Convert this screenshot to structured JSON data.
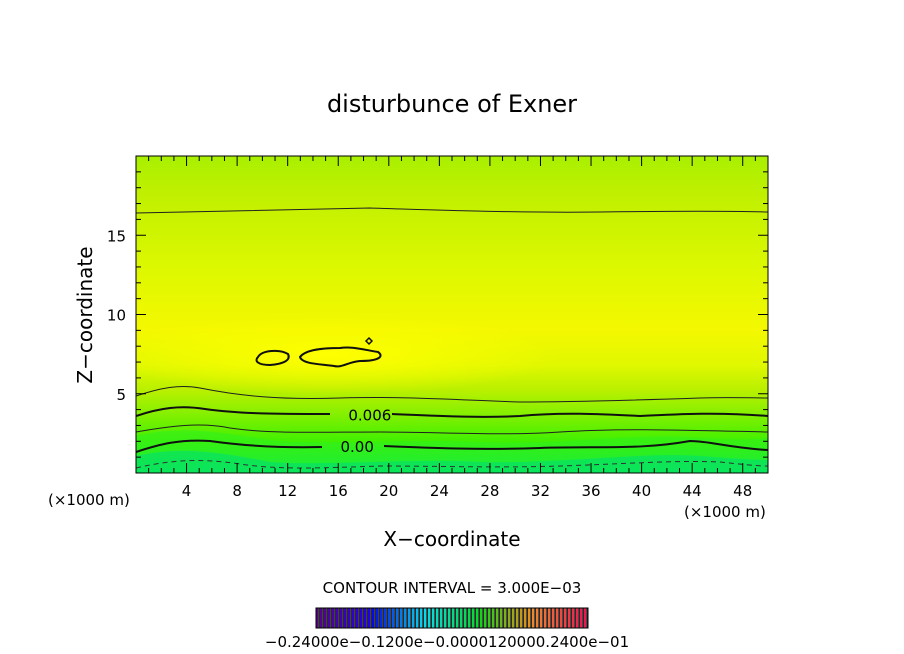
{
  "chart_data": {
    "type": "heatmap",
    "title": "disturbunce of Exner",
    "xlabel": "X−coordinate",
    "ylabel": "Z−coordinate",
    "x_unit_left": "(×1000 m)",
    "x_unit_right": "(×1000 m)",
    "xlim": [
      0,
      50
    ],
    "ylim": [
      0,
      20
    ],
    "x_ticks": [
      4,
      8,
      12,
      16,
      20,
      24,
      28,
      32,
      36,
      40,
      44,
      48
    ],
    "y_ticks": [
      5,
      10,
      15
    ],
    "x_tick_labels": [
      "4",
      "8",
      "12",
      "16",
      "20",
      "24",
      "28",
      "32",
      "36",
      "40",
      "44",
      "48"
    ],
    "y_tick_labels": [
      "5",
      "10",
      "15"
    ],
    "contour_labels": [
      {
        "text": "0.006",
        "x": 18.5,
        "z": 3.7
      },
      {
        "text": "0.00",
        "x": 17.5,
        "z": 1.7
      }
    ],
    "contour_interval_text": "CONTOUR INTERVAL = 3.000E−03",
    "colorbar_labels": [
      "−0.24000e−01",
      "−0.12000e−01",
      "0.0000",
      "0.12000e−01",
      "0.24000e−01"
    ],
    "colorbar_label_overlap_text": "−0.24000e−0.1200e−0.0000120000.2400e−01",
    "colorbar_range": [
      -0.024,
      0.024
    ]
  }
}
